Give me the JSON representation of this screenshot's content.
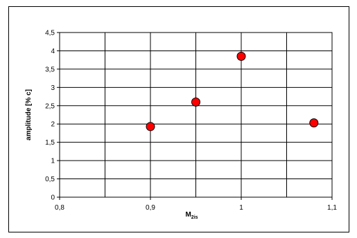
{
  "chart_data": {
    "type": "scatter",
    "xlabel": "M",
    "xlabel_sub": "2is",
    "ylabel": "amplitude [% c]",
    "xlim": [
      0.8,
      1.1
    ],
    "ylim": [
      0,
      4.5
    ],
    "x_ticks": [
      "0,8",
      "0,9",
      "1",
      "1,1"
    ],
    "x_tick_values": [
      0.8,
      0.9,
      1.0,
      1.1
    ],
    "y_ticks": [
      "0",
      "0,5",
      "1",
      "1,5",
      "2",
      "2,5",
      "3",
      "3,5",
      "4",
      "4,5"
    ],
    "y_tick_values": [
      0,
      0.5,
      1,
      1.5,
      2,
      2.5,
      3,
      3.5,
      4,
      4.5
    ],
    "grid": true,
    "point_color": "#ff0000",
    "points": [
      {
        "x": 0.9,
        "y": 1.93
      },
      {
        "x": 0.95,
        "y": 2.6
      },
      {
        "x": 1.0,
        "y": 3.85
      },
      {
        "x": 1.08,
        "y": 2.03
      }
    ]
  }
}
